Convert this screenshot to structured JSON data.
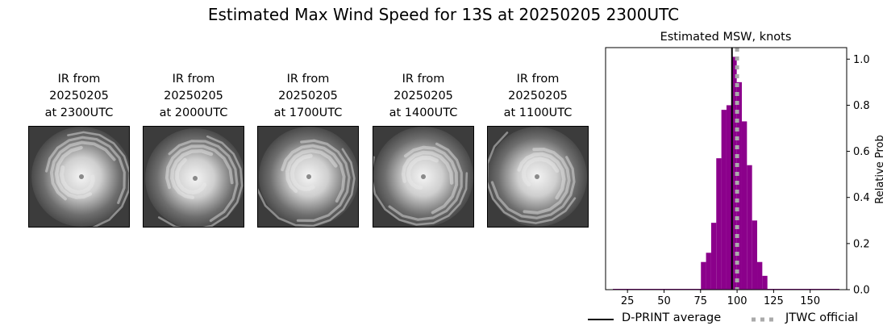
{
  "title": "Estimated Max Wind Speed for 13S at 20250205 2300UTC",
  "panels": [
    {
      "line1": "IR from",
      "line2": "20250205",
      "line3": "at 2300UTC"
    },
    {
      "line1": "IR from",
      "line2": "20250205",
      "line3": "at 2000UTC"
    },
    {
      "line1": "IR from",
      "line2": "20250205",
      "line3": "at 1700UTC"
    },
    {
      "line1": "IR from",
      "line2": "20250205",
      "line3": "at 1400UTC"
    },
    {
      "line1": "IR from",
      "line2": "20250205",
      "line3": "at 1100UTC"
    }
  ],
  "chart_data": {
    "type": "bar",
    "title": "Estimated MSW, knots",
    "xlabel": "",
    "ylabel": "Relative Prob",
    "xlim": [
      10,
      175
    ],
    "ylim": [
      0,
      1.05
    ],
    "xticks": [
      25,
      50,
      75,
      100,
      125,
      150
    ],
    "yticks": [
      0.0,
      0.2,
      0.4,
      0.6,
      0.8,
      1.0
    ],
    "ytick_labels": [
      "0.0",
      "0.2",
      "0.4",
      "0.6",
      "0.8",
      "1.0"
    ],
    "bin_width": 3.5,
    "bins": [
      {
        "x": 77,
        "y": 0.12
      },
      {
        "x": 80.5,
        "y": 0.16
      },
      {
        "x": 84,
        "y": 0.29
      },
      {
        "x": 87.5,
        "y": 0.57
      },
      {
        "x": 91,
        "y": 0.78
      },
      {
        "x": 94.5,
        "y": 0.8
      },
      {
        "x": 98,
        "y": 1.01
      },
      {
        "x": 101.5,
        "y": 0.9
      },
      {
        "x": 105,
        "y": 0.73
      },
      {
        "x": 108.5,
        "y": 0.54
      },
      {
        "x": 112,
        "y": 0.3
      },
      {
        "x": 115.5,
        "y": 0.12
      },
      {
        "x": 119,
        "y": 0.06
      }
    ],
    "baseline_range": [
      15,
      170
    ],
    "bar_color": "#8b008b",
    "dprint_average": 96.5,
    "jtwc_official": 100,
    "legend": [
      "D-PRINT average",
      "JTWC official"
    ],
    "legend_placement": "bottom-right"
  }
}
